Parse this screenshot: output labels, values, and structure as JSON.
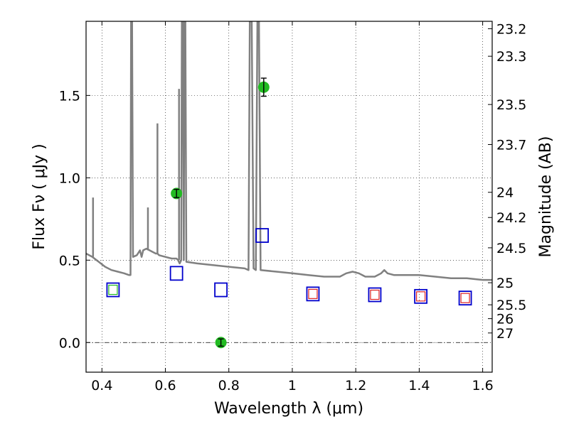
{
  "chart_data": {
    "type": "scatter",
    "xlabel": "Wavelength  λ (μm)",
    "ylabel": "Flux  Fν  ( μJy )",
    "y2label": "Magnitude (AB)",
    "xlim": [
      0.35,
      1.63
    ],
    "ylim": [
      -0.18,
      1.95
    ],
    "x_ticks": [
      0.4,
      0.6,
      0.8,
      1.0,
      1.2,
      1.4,
      1.6
    ],
    "x_tick_labels": [
      "0.4",
      "0.6",
      "0.8",
      "1",
      "1.2",
      "1.4",
      "1.6"
    ],
    "y_ticks": [
      0.0,
      0.5,
      1.0,
      1.5
    ],
    "y_tick_labels": [
      "0.0",
      "0.5",
      "1.0",
      "1.5"
    ],
    "y2_ticks": [
      {
        "label": "23.2",
        "flux": 1.905
      },
      {
        "label": "23.3",
        "flux": 1.738
      },
      {
        "label": "23.5",
        "flux": 1.445
      },
      {
        "label": "23.7",
        "flux": 1.202
      },
      {
        "label": "24",
        "flux": 0.912
      },
      {
        "label": "24.2",
        "flux": 0.759
      },
      {
        "label": "24.5",
        "flux": 0.575
      },
      {
        "label": "25",
        "flux": 0.363
      },
      {
        "label": "25.5",
        "flux": 0.229
      },
      {
        "label": "26",
        "flux": 0.145
      },
      {
        "label": "27",
        "flux": 0.058
      }
    ],
    "grid": true,
    "zero_line": true,
    "colors": {
      "model": "#808080",
      "observed": "#0000cc",
      "observed_inner": "#dd2222",
      "photometry": "#22bb22",
      "errorbar": "#000000"
    },
    "model_spectrum": [
      [
        0.35,
        0.54
      ],
      [
        0.37,
        0.52
      ],
      [
        0.39,
        0.49
      ],
      [
        0.41,
        0.46
      ],
      [
        0.43,
        0.44
      ],
      [
        0.45,
        0.43
      ],
      [
        0.47,
        0.42
      ],
      [
        0.485,
        0.41
      ],
      [
        0.49,
        0.41
      ],
      [
        0.492,
        1.95
      ],
      [
        0.495,
        1.95
      ],
      [
        0.498,
        0.52
      ],
      [
        0.51,
        0.53
      ],
      [
        0.52,
        0.56
      ],
      [
        0.525,
        0.52
      ],
      [
        0.53,
        0.56
      ],
      [
        0.54,
        0.57
      ],
      [
        0.55,
        0.56
      ],
      [
        0.56,
        0.55
      ],
      [
        0.57,
        0.54
      ],
      [
        0.575,
        0.54
      ],
      [
        0.58,
        0.53
      ],
      [
        0.6,
        0.52
      ],
      [
        0.62,
        0.51
      ],
      [
        0.635,
        0.51
      ],
      [
        0.64,
        0.5
      ],
      [
        0.645,
        0.48
      ],
      [
        0.65,
        0.5
      ],
      [
        0.652,
        1.95
      ],
      [
        0.655,
        1.95
      ],
      [
        0.658,
        0.5
      ],
      [
        0.66,
        1.95
      ],
      [
        0.663,
        1.95
      ],
      [
        0.666,
        0.49
      ],
      [
        0.7,
        0.48
      ],
      [
        0.75,
        0.47
      ],
      [
        0.8,
        0.46
      ],
      [
        0.85,
        0.45
      ],
      [
        0.862,
        0.44
      ],
      [
        0.866,
        1.95
      ],
      [
        0.872,
        1.95
      ],
      [
        0.878,
        0.45
      ],
      [
        0.885,
        0.44
      ],
      [
        0.89,
        1.95
      ],
      [
        0.895,
        1.95
      ],
      [
        0.9,
        0.44
      ],
      [
        0.95,
        0.43
      ],
      [
        1.0,
        0.42
      ],
      [
        1.05,
        0.41
      ],
      [
        1.1,
        0.4
      ],
      [
        1.15,
        0.4
      ],
      [
        1.17,
        0.42
      ],
      [
        1.19,
        0.43
      ],
      [
        1.21,
        0.42
      ],
      [
        1.23,
        0.4
      ],
      [
        1.26,
        0.4
      ],
      [
        1.28,
        0.42
      ],
      [
        1.29,
        0.44
      ],
      [
        1.3,
        0.42
      ],
      [
        1.32,
        0.41
      ],
      [
        1.35,
        0.41
      ],
      [
        1.4,
        0.41
      ],
      [
        1.45,
        0.4
      ],
      [
        1.5,
        0.39
      ],
      [
        1.55,
        0.39
      ],
      [
        1.6,
        0.38
      ],
      [
        1.63,
        0.38
      ]
    ],
    "emission_lines": [
      {
        "x": 0.372,
        "peak": 0.88,
        "base": 0.52
      },
      {
        "x": 0.545,
        "peak": 0.82,
        "base": 0.56
      },
      {
        "x": 0.575,
        "peak": 1.33,
        "base": 0.54
      },
      {
        "x": 0.643,
        "peak": 1.54,
        "base": 0.5
      }
    ],
    "model_photometry": [
      {
        "x": 0.435,
        "y": 0.32,
        "inner": "#22bb22"
      },
      {
        "x": 0.635,
        "y": 0.42,
        "inner": null
      },
      {
        "x": 0.775,
        "y": 0.32,
        "inner": null
      },
      {
        "x": 0.905,
        "y": 0.65,
        "inner": null
      },
      {
        "x": 1.065,
        "y": 0.295,
        "inner": "#dd2222"
      },
      {
        "x": 1.26,
        "y": 0.29,
        "inner": "#dd2222"
      },
      {
        "x": 1.405,
        "y": 0.28,
        "inner": "#dd2222"
      },
      {
        "x": 1.545,
        "y": 0.27,
        "inner": "#dd2222"
      }
    ],
    "observed_photometry": [
      {
        "x": 0.635,
        "y": 0.905,
        "err": 0.025
      },
      {
        "x": 0.775,
        "y": 0.0,
        "err": 0.022
      },
      {
        "x": 0.91,
        "y": 1.55,
        "err": 0.055
      }
    ]
  }
}
